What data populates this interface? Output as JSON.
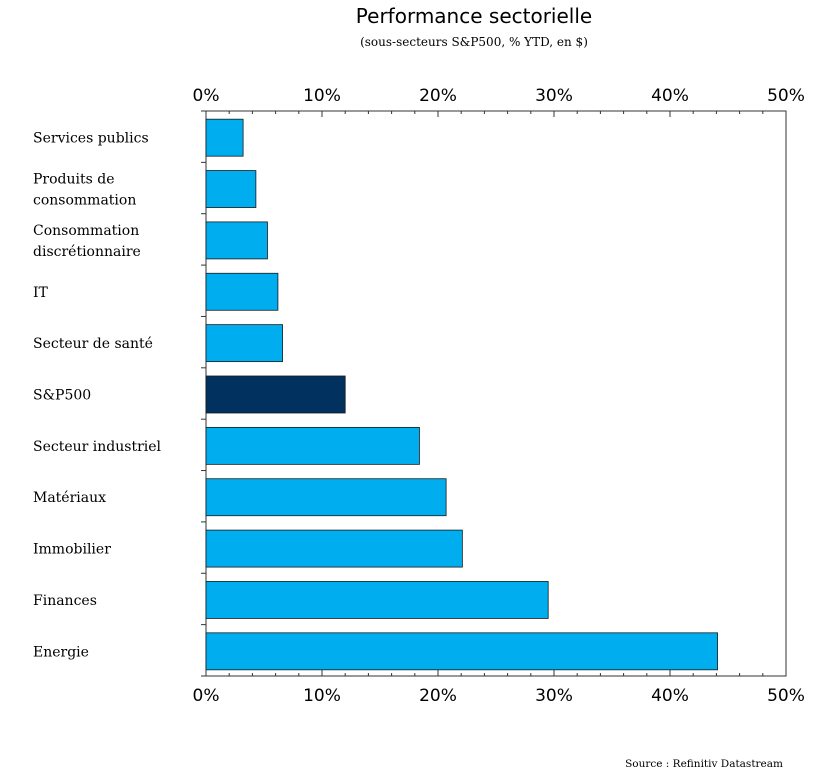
{
  "chart_data": {
    "type": "bar",
    "orientation": "horizontal",
    "title": "Performance sectorielle",
    "subtitle": "(sous-secteurs S&P500, % YTD, en $)",
    "xlim": [
      0,
      50
    ],
    "xticks": [
      "0%",
      "10%",
      "20%",
      "30%",
      "40%",
      "50%"
    ],
    "categories": [
      [
        "Services publics"
      ],
      [
        "Produits de",
        "consommation"
      ],
      [
        "Consommation",
        "discrétionnaire"
      ],
      [
        "IT"
      ],
      [
        "Secteur de santé"
      ],
      [
        "S&P500"
      ],
      [
        "Secteur industriel"
      ],
      [
        "Matériaux"
      ],
      [
        "Immobilier"
      ],
      [
        "Finances"
      ],
      [
        "Energie"
      ]
    ],
    "values": [
      3.2,
      4.3,
      5.3,
      6.2,
      6.6,
      12.0,
      18.4,
      20.7,
      22.1,
      29.5,
      44.1
    ],
    "highlight_index": 5,
    "colors": {
      "bar": "#00aeef",
      "highlight": "#00315f",
      "border": "#1a1a1a"
    },
    "grid": false,
    "legend": "none",
    "source": "Source : Refinitiv Datastream"
  }
}
